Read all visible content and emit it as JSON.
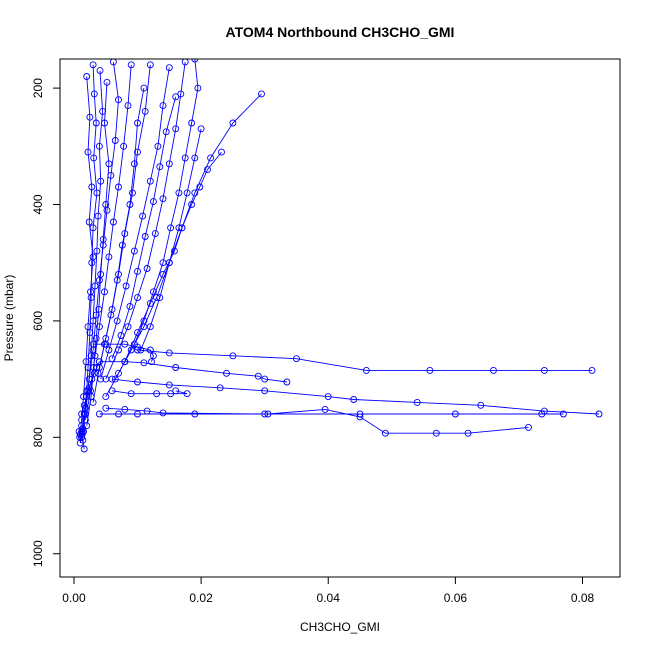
{
  "chart_data": {
    "type": "line",
    "title": "ATOM4 Northbound CH3CHO_GMI",
    "xlabel": "CH3CHO_GMI",
    "ylabel": "Pressure (mbar)",
    "xlim": [
      -0.0022,
      0.0859
    ],
    "ylim": [
      1040,
      150
    ],
    "y_reversed": true,
    "x_ticks": [
      0.0,
      0.02,
      0.04,
      0.06,
      0.08
    ],
    "x_tick_labels": [
      "0.00",
      "0.02",
      "0.04",
      "0.06",
      "0.08"
    ],
    "y_ticks": [
      200,
      400,
      600,
      800,
      1000
    ],
    "y_tick_labels": [
      "200",
      "400",
      "600",
      "800",
      "1000"
    ],
    "grid": false,
    "marker": "open-circle",
    "color": "#0000ff",
    "series": [
      {
        "x": [
          0.003,
          0.0032,
          0.0035,
          0.0031,
          0.0036,
          0.003,
          0.0028,
          0.0027,
          0.0025,
          0.0022,
          0.002,
          0.0016,
          0.0013,
          0.001
        ],
        "y": [
          160,
          210,
          260,
          320,
          380,
          440,
          500,
          560,
          620,
          680,
          720,
          760,
          790,
          810
        ]
      },
      {
        "x": [
          0.0041,
          0.0045,
          0.004,
          0.0042,
          0.0038,
          0.0036,
          0.0033,
          0.003,
          0.0027,
          0.0022,
          0.0018,
          0.0012
        ],
        "y": [
          170,
          240,
          300,
          360,
          420,
          480,
          540,
          600,
          660,
          720,
          760,
          800
        ]
      },
      {
        "x": [
          0.0062,
          0.007,
          0.0065,
          0.0058,
          0.0052,
          0.0046,
          0.004,
          0.0035,
          0.003,
          0.0024,
          0.0018,
          0.0012
        ],
        "y": [
          155,
          220,
          290,
          350,
          410,
          470,
          530,
          590,
          650,
          700,
          750,
          790
        ]
      },
      {
        "x": [
          0.009,
          0.0085,
          0.0078,
          0.007,
          0.0062,
          0.0055,
          0.0048,
          0.004,
          0.0033,
          0.0026,
          0.0018
        ],
        "y": [
          160,
          230,
          300,
          370,
          430,
          490,
          550,
          610,
          660,
          720,
          770
        ]
      },
      {
        "x": [
          0.012,
          0.0112,
          0.01,
          0.0092,
          0.008,
          0.007,
          0.006,
          0.005,
          0.004,
          0.003
        ],
        "y": [
          160,
          240,
          310,
          380,
          450,
          520,
          580,
          630,
          680,
          740
        ]
      },
      {
        "x": [
          0.015,
          0.014,
          0.0132,
          0.012,
          0.0108,
          0.0095,
          0.0082,
          0.0068,
          0.0055,
          0.0042
        ],
        "y": [
          165,
          230,
          300,
          360,
          420,
          480,
          540,
          600,
          650,
          700
        ]
      },
      {
        "x": [
          0.0175,
          0.0168,
          0.016,
          0.015,
          0.014,
          0.0128,
          0.0115,
          0.01,
          0.0085,
          0.007,
          0.005
        ],
        "y": [
          155,
          210,
          270,
          330,
          390,
          450,
          510,
          560,
          610,
          650,
          700
        ]
      },
      {
        "x": [
          0.019,
          0.0195,
          0.0185,
          0.0175,
          0.0165,
          0.0152,
          0.014,
          0.0125,
          0.011,
          0.0095,
          0.008,
          0.0065
        ],
        "y": [
          150,
          200,
          260,
          320,
          380,
          440,
          500,
          550,
          600,
          640,
          670,
          700
        ]
      },
      {
        "x": [
          0.0295,
          0.025,
          0.0215,
          0.019,
          0.017,
          0.015,
          0.013,
          0.011,
          0.009,
          0.007,
          0.005
        ],
        "y": [
          210,
          260,
          320,
          380,
          440,
          500,
          560,
          610,
          650,
          690,
          730
        ]
      },
      {
        "x": [
          0.0232,
          0.021,
          0.0198,
          0.0185,
          0.017,
          0.0158,
          0.014,
          0.012,
          0.01,
          0.008
        ],
        "y": [
          310,
          340,
          370,
          400,
          440,
          480,
          520,
          570,
          620,
          670
        ]
      },
      {
        "x": [
          0.002,
          0.0025,
          0.0022,
          0.0028,
          0.0024,
          0.003,
          0.0026,
          0.0022,
          0.0019,
          0.0015,
          0.0012,
          0.0009
        ],
        "y": [
          180,
          250,
          310,
          370,
          430,
          490,
          550,
          610,
          670,
          730,
          770,
          800
        ]
      },
      {
        "x": [
          0.0052,
          0.0048,
          0.0055,
          0.005,
          0.0046,
          0.0042,
          0.0039,
          0.0035,
          0.0031,
          0.0027,
          0.002
        ],
        "y": [
          190,
          260,
          330,
          400,
          460,
          520,
          580,
          630,
          680,
          730,
          780
        ]
      },
      {
        "x": [
          0.011,
          0.01,
          0.0095,
          0.0088,
          0.0076,
          0.0068,
          0.0058,
          0.0048,
          0.0038
        ],
        "y": [
          200,
          260,
          330,
          400,
          470,
          530,
          590,
          640,
          690
        ]
      },
      {
        "x": [
          0.016,
          0.0145,
          0.0135,
          0.0125,
          0.0112,
          0.01,
          0.0088,
          0.0074,
          0.006
        ],
        "y": [
          215,
          275,
          335,
          395,
          455,
          515,
          575,
          625,
          665
        ]
      },
      {
        "x": [
          0.02,
          0.019,
          0.0178,
          0.0165,
          0.015,
          0.0135,
          0.012,
          0.0105
        ],
        "y": [
          270,
          320,
          380,
          440,
          500,
          560,
          610,
          650
        ]
      },
      {
        "x": [
          0.003,
          0.005,
          0.008,
          0.01,
          0.012,
          0.0125,
          0.0122
        ],
        "y": [
          640,
          640,
          640,
          645,
          650,
          660,
          670
        ]
      },
      {
        "x": [
          0.01,
          0.015,
          0.025,
          0.035,
          0.046,
          0.056,
          0.066,
          0.074,
          0.0815
        ],
        "y": [
          650,
          655,
          660,
          665,
          685,
          685,
          685,
          685,
          685
        ]
      },
      {
        "x": [
          0.004,
          0.008,
          0.011,
          0.016,
          0.024,
          0.029,
          0.03,
          0.0335
        ],
        "y": [
          670,
          670,
          672,
          680,
          690,
          695,
          700,
          705
        ]
      },
      {
        "x": [
          0.006,
          0.01,
          0.015,
          0.023,
          0.03,
          0.04,
          0.044,
          0.054,
          0.064,
          0.074,
          0.0826
        ],
        "y": [
          700,
          705,
          710,
          715,
          720,
          730,
          735,
          740,
          745,
          755,
          760
        ]
      },
      {
        "x": [
          0.004,
          0.007,
          0.01,
          0.019,
          0.0305,
          0.0395,
          0.045,
          0.049,
          0.057,
          0.062,
          0.0715
        ],
        "y": [
          760,
          760,
          760,
          760,
          760,
          752,
          765,
          793,
          793,
          793,
          783
        ]
      },
      {
        "x": [
          0.005,
          0.008,
          0.0115,
          0.014,
          0.03,
          0.045,
          0.06,
          0.0736,
          0.077
        ],
        "y": [
          750,
          752,
          755,
          758,
          760,
          760,
          760,
          760,
          760
        ]
      },
      {
        "x": [
          0.006,
          0.009,
          0.013,
          0.0152,
          0.0178,
          0.016
        ],
        "y": [
          720,
          725,
          725,
          725,
          725,
          720
        ]
      },
      {
        "x": [
          0.0012,
          0.0016,
          0.002,
          0.0024,
          0.0028,
          0.0032,
          0.0036,
          0.004
        ],
        "y": [
          760,
          745,
          730,
          715,
          700,
          690,
          680,
          670
        ]
      },
      {
        "x": [
          0.0008,
          0.001,
          0.0012,
          0.0014,
          0.0016
        ],
        "y": [
          790,
          795,
          800,
          805,
          820
        ]
      },
      {
        "x": [
          0.0012,
          0.0014,
          0.0015,
          0.0013,
          0.0012
        ],
        "y": [
          780,
          785,
          790,
          795,
          800
        ]
      }
    ]
  }
}
